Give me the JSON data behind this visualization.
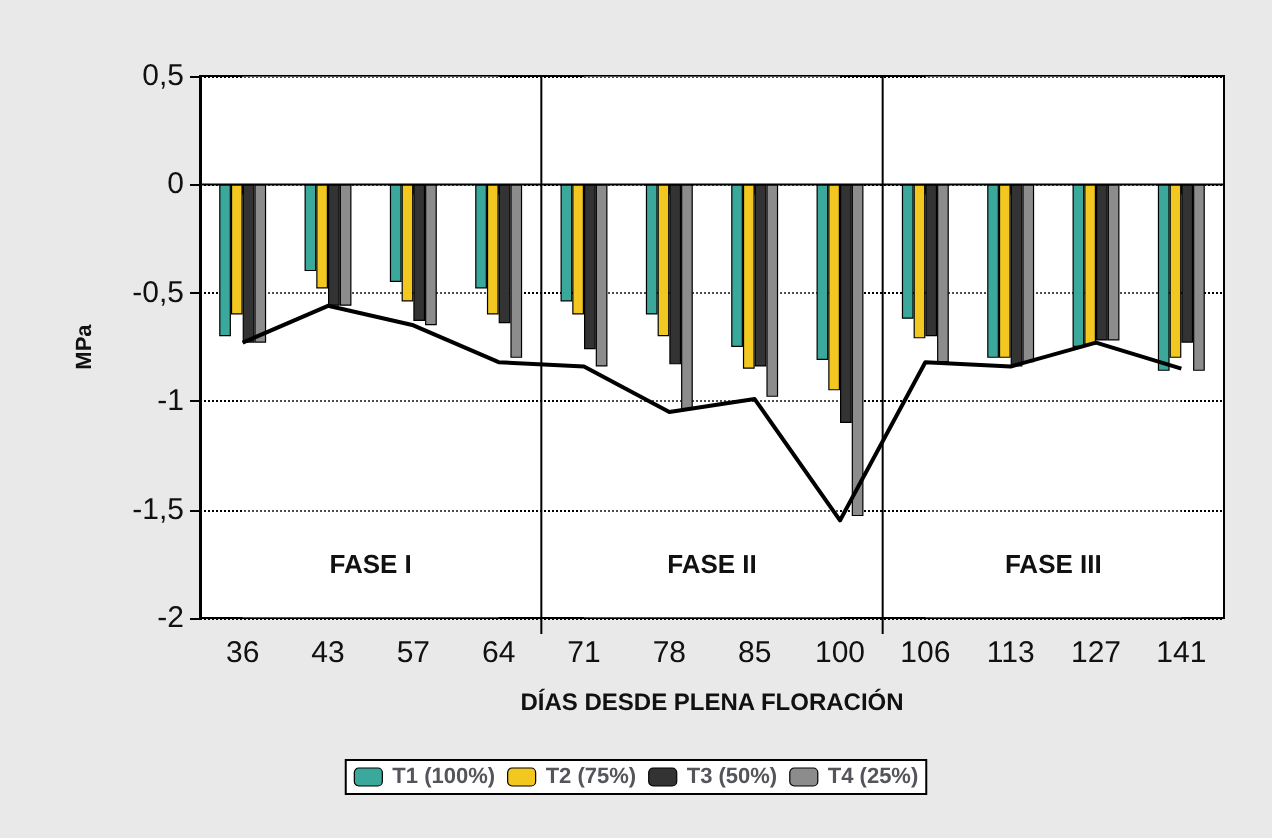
{
  "chart_data": {
    "type": "bar",
    "xlabel": "DÍAS DESDE PLENA FLORACIÓN",
    "ylabel": "MPa",
    "categories": [
      "36",
      "43",
      "57",
      "64",
      "71",
      "78",
      "85",
      "100",
      "106",
      "113",
      "127",
      "141"
    ],
    "series": [
      {
        "name": "T1 (100%)",
        "color": "#3aa89a",
        "values": [
          -0.7,
          -0.4,
          -0.45,
          -0.48,
          -0.54,
          -0.6,
          -0.75,
          -0.81,
          -0.62,
          -0.8,
          -0.75,
          -0.86
        ]
      },
      {
        "name": "T2 (75%)",
        "color": "#f2c820",
        "values": [
          -0.6,
          -0.48,
          -0.54,
          -0.6,
          -0.6,
          -0.7,
          -0.85,
          -0.95,
          -0.71,
          -0.8,
          -0.74,
          -0.8
        ]
      },
      {
        "name": "T3 (50%)",
        "color": "#333333",
        "values": [
          -0.73,
          -0.56,
          -0.63,
          -0.64,
          -0.76,
          -0.83,
          -0.84,
          -1.1,
          -0.7,
          -0.84,
          -0.72,
          -0.73
        ]
      },
      {
        "name": "T4 (25%)",
        "color": "#8c8c8c",
        "values": [
          -0.73,
          -0.56,
          -0.65,
          -0.8,
          -0.84,
          -1.04,
          -0.98,
          -1.53,
          -0.82,
          -0.82,
          -0.72,
          -0.86
        ]
      },
      {
        "type": "line",
        "color": "#000000",
        "values": [
          -0.73,
          -0.56,
          -0.65,
          -0.82,
          -0.84,
          -1.05,
          -0.99,
          -1.55,
          -0.82,
          -0.84,
          -0.73,
          -0.85
        ]
      }
    ],
    "ylim": [
      -2,
      0.5
    ],
    "yticks": [
      -2,
      {
        "value": -1.5,
        "label": "-1,5"
      },
      -1,
      {
        "value": -0.5,
        "label": "-0,5"
      },
      0,
      {
        "value": 0.5,
        "label": "0,5"
      }
    ],
    "grid": "y",
    "legend": "bottom",
    "marker": "none",
    "line_style": "solid",
    "bands": [
      {
        "axis": "x",
        "from": "36",
        "to": "64",
        "label": "FASE I",
        "color": "#ffffff"
      },
      {
        "axis": "x",
        "from": "71",
        "to": "100",
        "label": "FASE II",
        "color": "#ffffff"
      },
      {
        "axis": "x",
        "from": "106",
        "to": "141",
        "label": "FASE III",
        "color": "#ffffff"
      }
    ]
  }
}
